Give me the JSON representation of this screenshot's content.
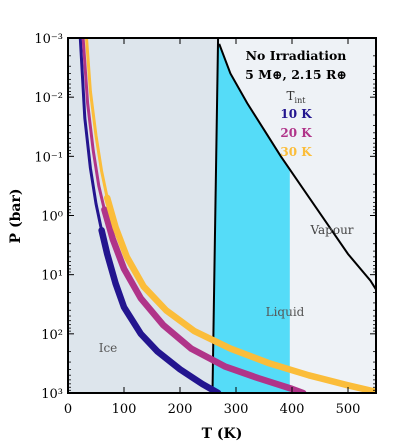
{
  "chart_data": {
    "type": "line",
    "title": "No Irradiation",
    "subtitle": "5 M⊕, 2.15 R⊕",
    "xlabel": "T (K)",
    "ylabel": "P (bar)",
    "xlim": [
      0,
      550
    ],
    "ylim_log10": [
      -3,
      3
    ],
    "y_axis": "log, inverted (pressure increases downward)",
    "x_ticks": [
      "0",
      "100",
      "200",
      "300",
      "400",
      "500"
    ],
    "y_ticks": [
      "10⁻³",
      "10⁻²",
      "10⁻¹",
      "10⁰",
      "10¹",
      "10²",
      "10³"
    ],
    "legend_title": "T_int",
    "legend_placement": "top-right",
    "grid": false,
    "regions": [
      {
        "name": "Ice",
        "color": "#dde5ec"
      },
      {
        "name": "Liquid",
        "color": "#55dcf8"
      },
      {
        "name": "Vapour",
        "color": "#eef2f6"
      }
    ],
    "boundaries": {
      "ice_liquid": {
        "T_top": 268,
        "T_bottom": 258
      },
      "liquid_vapour": {
        "T": [
          270,
          290,
          320,
          350,
          380,
          420,
          460,
          500,
          540,
          550
        ],
        "log10P": [
          -2.9,
          -2.4,
          -1.9,
          -1.45,
          -1.0,
          -0.45,
          0.1,
          0.65,
          1.1,
          1.25
        ]
      }
    },
    "series": [
      {
        "name": "10 K",
        "color": "#23158f",
        "T": [
          22,
          30,
          40,
          50,
          60,
          70,
          85,
          100,
          130,
          160,
          200,
          240,
          268
        ],
        "log10P": [
          -3.0,
          -1.65,
          -0.8,
          -0.2,
          0.25,
          0.65,
          1.15,
          1.55,
          2.0,
          2.3,
          2.6,
          2.85,
          3.0
        ],
        "thick_from_T": 60
      },
      {
        "name": "20 K",
        "color": "#b03489",
        "T": [
          27,
          35,
          45,
          55,
          65,
          80,
          100,
          130,
          170,
          220,
          280,
          340,
          400,
          420
        ],
        "log10P": [
          -3.0,
          -1.9,
          -1.1,
          -0.5,
          -0.1,
          0.4,
          0.9,
          1.4,
          1.85,
          2.25,
          2.55,
          2.75,
          2.93,
          3.0
        ],
        "thick_from_T": 65
      },
      {
        "name": "30 K",
        "color": "#fbbd3a",
        "T": [
          33,
          40,
          50,
          60,
          70,
          85,
          105,
          135,
          175,
          225,
          290,
          360,
          430,
          500,
          545
        ],
        "log10P": [
          -3.0,
          -2.1,
          -1.35,
          -0.75,
          -0.3,
          0.2,
          0.7,
          1.2,
          1.6,
          1.95,
          2.25,
          2.5,
          2.7,
          2.87,
          2.97
        ],
        "thick_from_T": 70
      }
    ]
  }
}
